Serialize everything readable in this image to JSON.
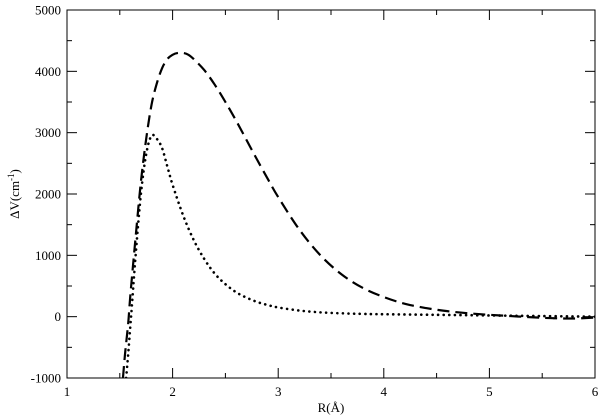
{
  "chart_data": {
    "type": "line",
    "title": "",
    "xlabel": "R(Å)",
    "ylabel": "ΔV(cm",
    "ylabel_sup": "-1",
    "ylabel_close": ")",
    "xlim": [
      1,
      6
    ],
    "ylim": [
      -1000,
      5000
    ],
    "xticks": [
      1,
      2,
      3,
      4,
      5,
      6
    ],
    "xtick_labels": [
      "1",
      "2",
      "3",
      "4",
      "5",
      "6"
    ],
    "yticks": [
      -1000,
      0,
      1000,
      2000,
      3000,
      4000,
      5000
    ],
    "ytick_labels": [
      "-1000",
      "0",
      "1000",
      "2000",
      "3000",
      "4000",
      "5000"
    ],
    "xminor": [
      1.5,
      2.5,
      3.5,
      4.5,
      5.5
    ],
    "yminor": [
      -500,
      500,
      1500,
      2500,
      3500,
      4500
    ],
    "grid": false,
    "legend": "none",
    "series": [
      {
        "style": "dashed",
        "color": "#000000",
        "x": [
          1.53,
          1.55,
          1.58,
          1.6,
          1.65,
          1.7,
          1.75,
          1.8,
          1.85,
          1.9,
          1.95,
          2.0,
          2.05,
          2.1,
          2.15,
          2.2,
          2.3,
          2.4,
          2.5,
          2.6,
          2.7,
          2.8,
          2.9,
          3.0,
          3.2,
          3.4,
          3.6,
          3.8,
          4.0,
          4.2,
          4.4,
          4.6,
          4.8,
          5.0,
          5.2,
          5.4,
          5.6,
          5.8,
          6.0
        ],
        "y": [
          -1000,
          -600,
          -100,
          350,
          1300,
          2200,
          2900,
          3450,
          3800,
          4050,
          4200,
          4270,
          4300,
          4300,
          4270,
          4200,
          4020,
          3780,
          3500,
          3200,
          2880,
          2560,
          2250,
          1950,
          1420,
          1000,
          690,
          470,
          320,
          210,
          140,
          90,
          55,
          30,
          10,
          -10,
          -25,
          -30,
          -15
        ]
      },
      {
        "style": "dotted",
        "color": "#000000",
        "x": [
          1.56,
          1.58,
          1.6,
          1.62,
          1.65,
          1.7,
          1.75,
          1.8,
          1.85,
          1.9,
          1.95,
          2.0,
          2.1,
          2.2,
          2.3,
          2.4,
          2.5,
          2.6,
          2.7,
          2.8,
          2.9,
          3.0,
          3.2,
          3.4,
          3.6,
          3.8,
          4.0,
          4.5,
          5.0,
          5.5,
          6.0
        ],
        "y": [
          -1000,
          -600,
          -150,
          300,
          1000,
          2000,
          2650,
          2950,
          2900,
          2750,
          2450,
          2150,
          1650,
          1250,
          940,
          700,
          530,
          400,
          310,
          240,
          190,
          150,
          100,
          70,
          55,
          45,
          40,
          30,
          20,
          10,
          0
        ]
      }
    ]
  }
}
